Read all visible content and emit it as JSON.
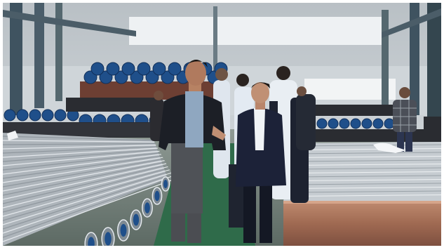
{
  "scene": {
    "kind": "photograph",
    "setting": "factory-hall-steel-pipe-storage",
    "colors": {
      "roof": "#c9ced2",
      "wall": "#d7dcdf",
      "column": "#3f5360",
      "floor_aisle": "#2f6b4a",
      "pipe_blue": "#1f4f8a",
      "pipe_black": "#2a2c31",
      "pipe_galvanized": "#c8cdd2",
      "pipe_copper": "#a8735a",
      "suit_dark": "#1c2030",
      "shirt_light": "#e7edf3"
    }
  },
  "people": [
    {
      "role": "pointing-man"
    },
    {
      "role": "man-in-navy-suit"
    },
    {
      "role": "group-of-visitors"
    },
    {
      "role": "worker-plaid-shirt"
    }
  ]
}
